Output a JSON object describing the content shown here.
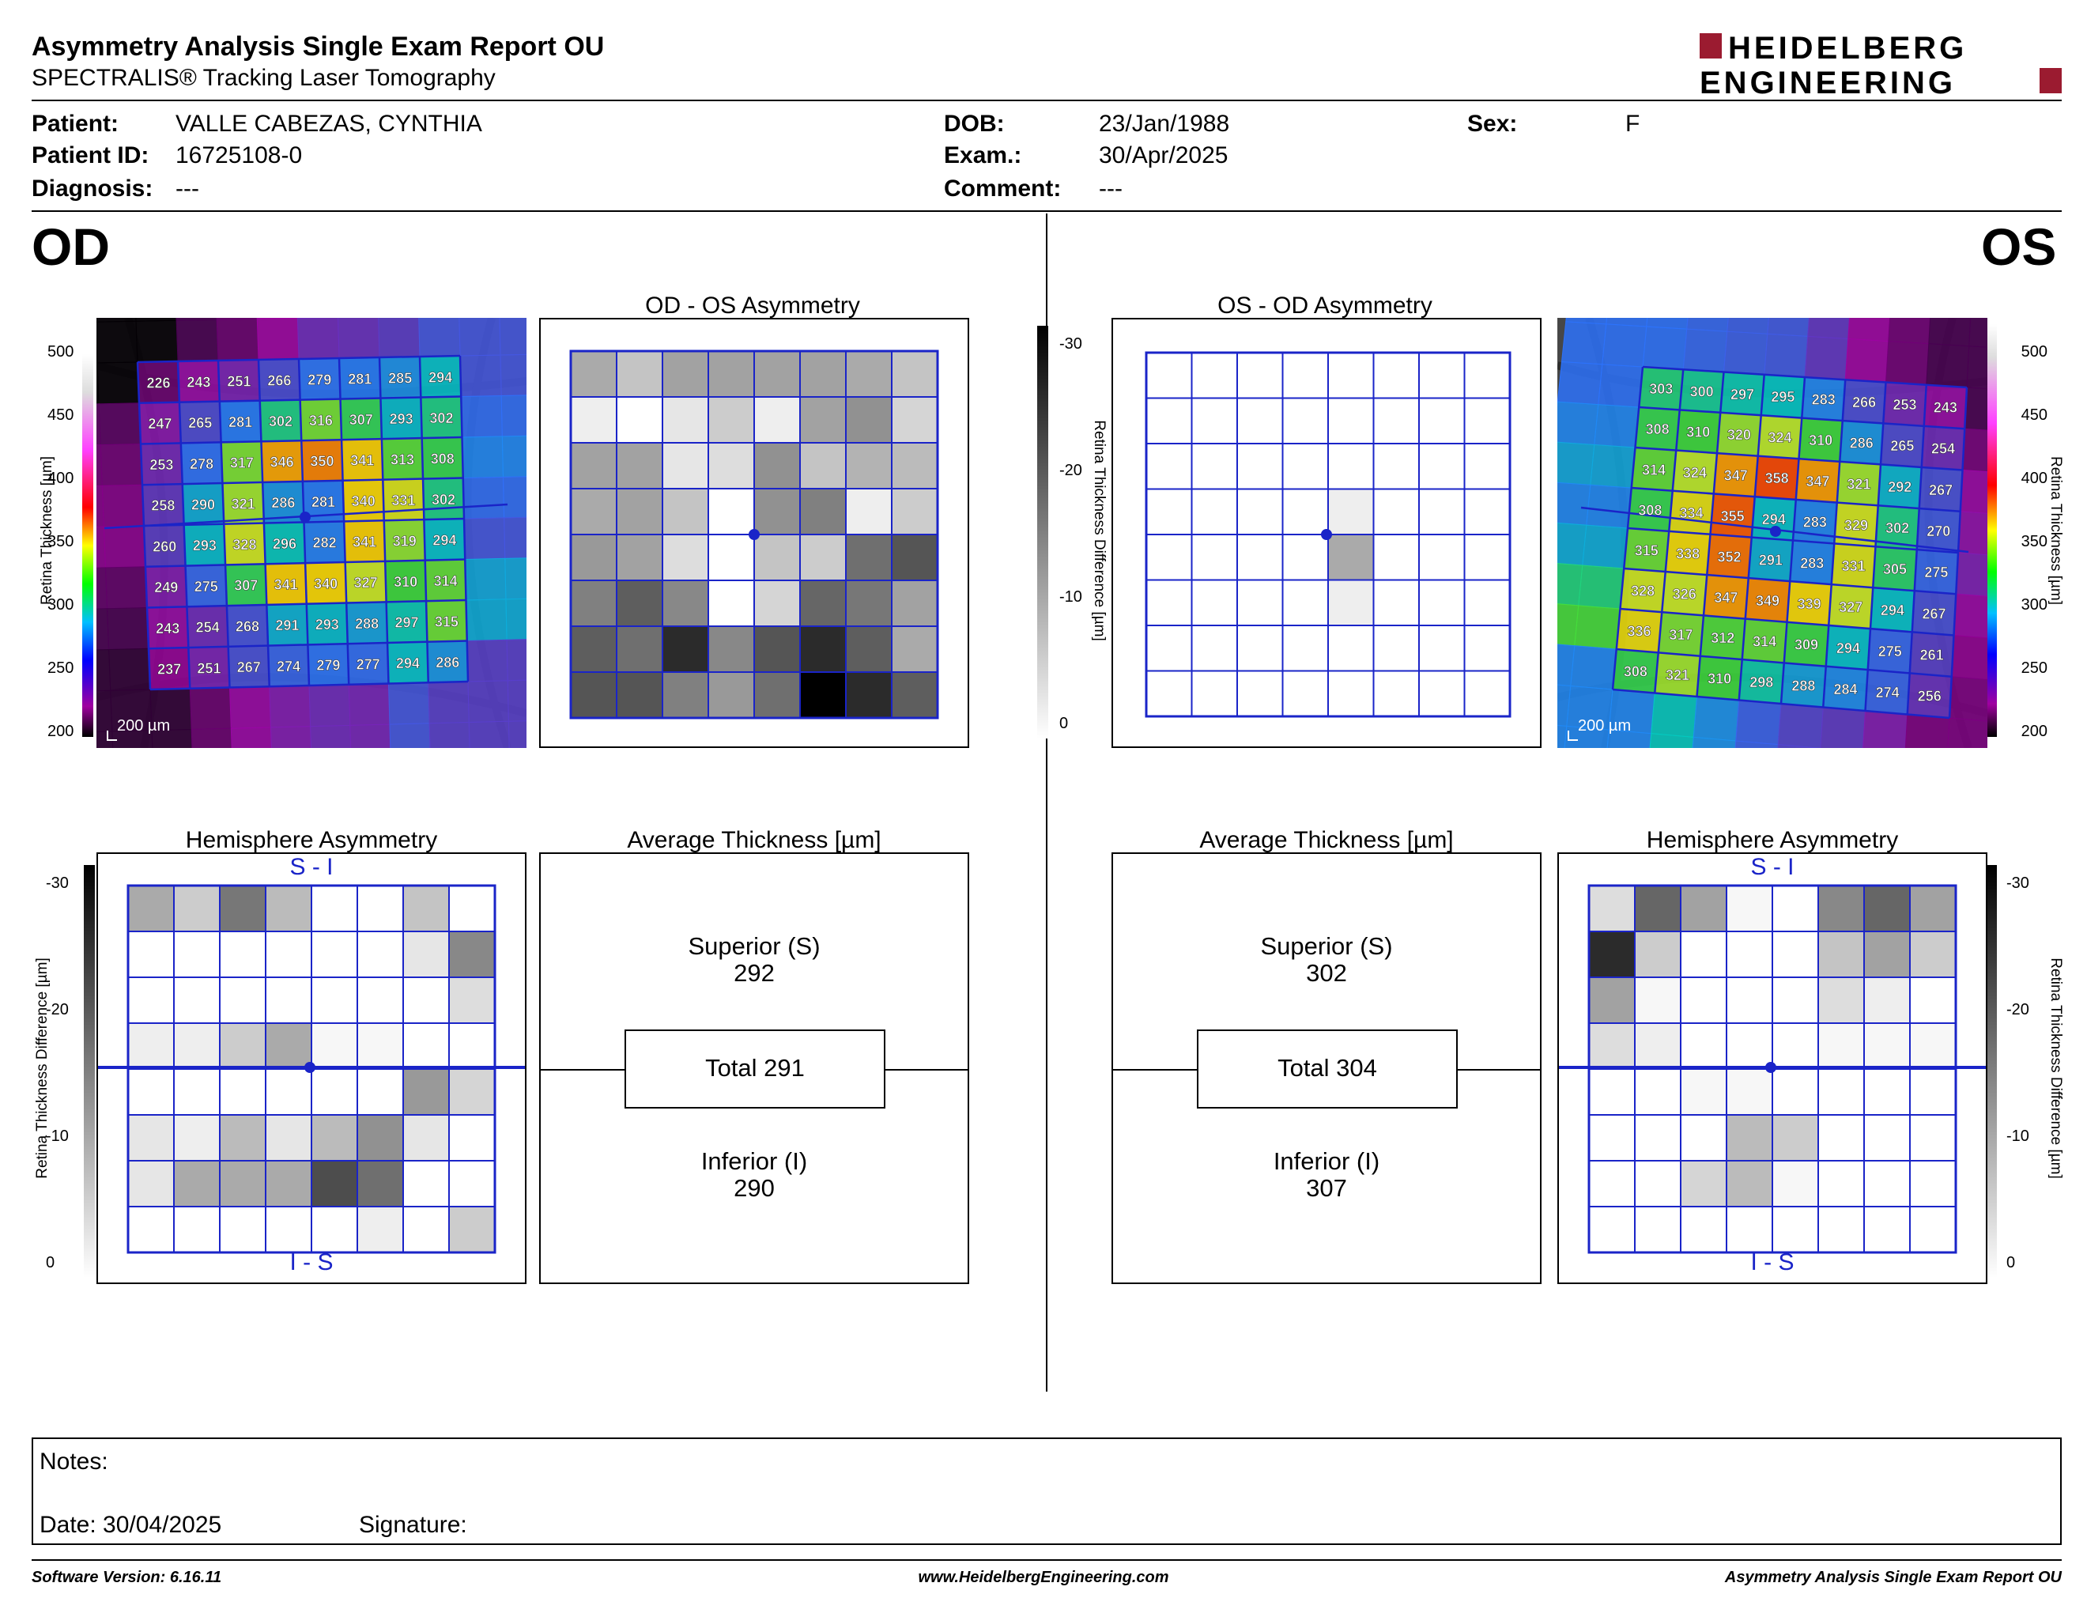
{
  "header": {
    "title": "Asymmetry Analysis Single Exam Report OU",
    "subtitle": "SPECTRALIS® Tracking Laser Tomography",
    "logo_line1": "HEIDELBERG",
    "logo_line2": "ENGINEERING"
  },
  "patient": {
    "patient_label": "Patient:",
    "patient_value": "VALLE CABEZAS, CYNTHIA",
    "id_label": "Patient ID:",
    "id_value": "16725108-0",
    "diagnosis_label": "Diagnosis:",
    "diagnosis_value": "---",
    "dob_label": "DOB:",
    "dob_value": "23/Jan/1988",
    "exam_label": "Exam.:",
    "exam_value": "30/Apr/2025",
    "comment_label": "Comment:",
    "comment_value": "---",
    "sex_label": "Sex:",
    "sex_value": "F"
  },
  "eyes": {
    "od": "OD",
    "os": "OS"
  },
  "panels": {
    "od_os_title": "OD - OS Asymmetry",
    "os_od_title": "OS - OD Asymmetry",
    "hemi_title": "Hemisphere Asymmetry",
    "avg_title": "Average Thickness [µm]",
    "scale_bar": "200 µm",
    "si": "S - I",
    "is": "I - S"
  },
  "thickness_scale": {
    "label": "Retina Thickness [µm]",
    "ticks": [
      "500",
      "450",
      "400",
      "350",
      "300",
      "250",
      "200"
    ]
  },
  "diff_scale": {
    "label": "Retina Thickness Difference [µm]",
    "ticks": [
      "-30",
      "-20",
      "-10",
      "0"
    ]
  },
  "od_grid": [
    [
      226,
      243,
      251,
      266,
      279,
      281,
      285,
      294
    ],
    [
      247,
      265,
      281,
      302,
      316,
      307,
      293,
      302
    ],
    [
      253,
      278,
      317,
      346,
      350,
      341,
      313,
      308
    ],
    [
      258,
      290,
      321,
      286,
      281,
      340,
      331,
      302
    ],
    [
      260,
      293,
      328,
      296,
      282,
      341,
      319,
      294
    ],
    [
      249,
      275,
      307,
      341,
      340,
      327,
      310,
      314
    ],
    [
      243,
      254,
      268,
      291,
      293,
      288,
      297,
      315
    ],
    [
      237,
      251,
      267,
      274,
      279,
      277,
      294,
      286
    ]
  ],
  "os_grid": [
    [
      303,
      300,
      297,
      295,
      283,
      266,
      253,
      243
    ],
    [
      308,
      310,
      320,
      324,
      310,
      286,
      265,
      254
    ],
    [
      314,
      324,
      347,
      358,
      347,
      321,
      292,
      267
    ],
    [
      308,
      334,
      355,
      294,
      283,
      329,
      302,
      270
    ],
    [
      315,
      338,
      352,
      291,
      283,
      331,
      305,
      275
    ],
    [
      328,
      326,
      347,
      349,
      339,
      327,
      294,
      267
    ],
    [
      336,
      317,
      312,
      314,
      309,
      294,
      275,
      261
    ],
    [
      308,
      321,
      310,
      298,
      288,
      284,
      274,
      256
    ]
  ],
  "od_os_diff": [
    [
      10,
      7,
      11,
      11,
      11,
      11,
      10,
      7
    ],
    [
      2,
      0,
      3,
      6,
      2,
      11,
      13,
      5
    ],
    [
      11,
      11,
      3,
      4,
      13,
      7,
      9,
      8
    ],
    [
      10,
      11,
      7,
      0,
      13,
      15,
      2,
      6
    ],
    [
      12,
      11,
      4,
      0,
      7,
      6,
      17,
      20
    ],
    [
      15,
      19,
      14,
      0,
      5,
      18,
      16,
      11
    ],
    [
      19,
      17,
      25,
      14,
      20,
      25,
      19,
      10
    ],
    [
      20,
      20,
      15,
      12,
      17,
      30,
      25,
      19
    ]
  ],
  "os_od_diff": [
    [
      0,
      0,
      0,
      0,
      0,
      0,
      0,
      0
    ],
    [
      0,
      0,
      0,
      0,
      0,
      0,
      0,
      0
    ],
    [
      0,
      0,
      0,
      0,
      0,
      0,
      0,
      0
    ],
    [
      0,
      0,
      0,
      0,
      2,
      0,
      0,
      0
    ],
    [
      0,
      0,
      0,
      0,
      10,
      0,
      0,
      0
    ],
    [
      0,
      0,
      0,
      0,
      2,
      0,
      0,
      0
    ],
    [
      0,
      0,
      0,
      0,
      0,
      0,
      0,
      0
    ],
    [
      0,
      0,
      0,
      0,
      0,
      0,
      0,
      0
    ]
  ],
  "od_hemi": [
    [
      10,
      6,
      16,
      8,
      0,
      0,
      7,
      0
    ],
    [
      0,
      0,
      0,
      0,
      0,
      0,
      3,
      14
    ],
    [
      0,
      0,
      0,
      0,
      0,
      0,
      0,
      4
    ],
    [
      2,
      2,
      6,
      10,
      1,
      1,
      0,
      0
    ],
    [
      0,
      0,
      0,
      0,
      0,
      0,
      12,
      5
    ],
    [
      3,
      2,
      8,
      3,
      8,
      13,
      3,
      0
    ],
    [
      3,
      10,
      10,
      10,
      21,
      17,
      0,
      0
    ],
    [
      0,
      0,
      0,
      0,
      0,
      2,
      0,
      6
    ]
  ],
  "os_hemi": [
    [
      4,
      18,
      11,
      1,
      0,
      14,
      18,
      11
    ],
    [
      25,
      6,
      0,
      0,
      0,
      7,
      11,
      6
    ],
    [
      11,
      1,
      0,
      0,
      0,
      4,
      2,
      0
    ],
    [
      4,
      2,
      0,
      0,
      0,
      1,
      1,
      1
    ],
    [
      0,
      0,
      1,
      1,
      0,
      0,
      0,
      0
    ],
    [
      0,
      0,
      0,
      8,
      6,
      0,
      0,
      0
    ],
    [
      0,
      0,
      5,
      8,
      1,
      0,
      0,
      0
    ],
    [
      0,
      0,
      0,
      0,
      0,
      0,
      0,
      0
    ]
  ],
  "od_avg": {
    "superior_label": "Superior (S)",
    "superior_value": "292",
    "total": "Total 291",
    "inferior_label": "Inferior (I)",
    "inferior_value": "290"
  },
  "os_avg": {
    "superior_label": "Superior (S)",
    "superior_value": "302",
    "total": "Total 304",
    "inferior_label": "Inferior (I)",
    "inferior_value": "307"
  },
  "notes": {
    "notes_label": "Notes:",
    "date_label": "Date: 30/04/2025",
    "signature_label": "Signature:"
  },
  "footer": {
    "software": "Software Version: 6.16.11",
    "website": "www.HeidelbergEngineering.com",
    "report": "Asymmetry Analysis Single Exam Report OU"
  },
  "colors": {
    "grid_blue": "#1a24c8",
    "logo_red": "#9b1b30"
  }
}
